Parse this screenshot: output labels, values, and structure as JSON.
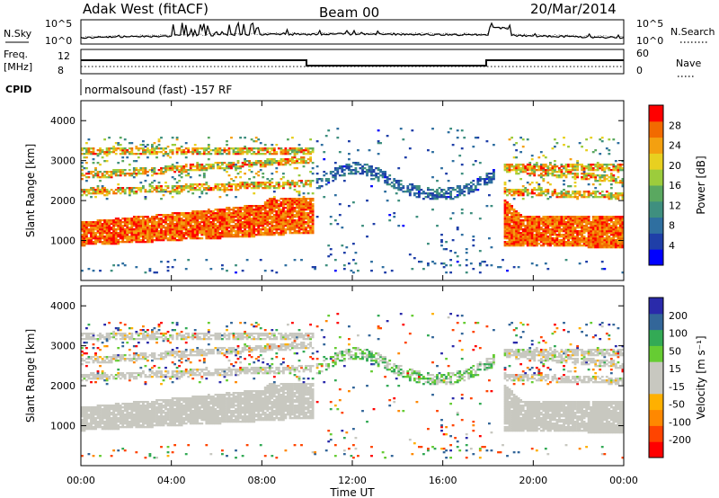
{
  "header": {
    "title": "Adak West (fitACF)",
    "beam": "Beam 00",
    "date": "20/Mar/2014"
  },
  "params": {
    "nsky_label": "N.Sky",
    "nsearch_label": "N.Search",
    "noise_ticks_left": [
      "10^5",
      "10^0"
    ],
    "noise_ticks_right": [
      "10^5",
      "10^0"
    ],
    "freq_label_1": "Freq.",
    "freq_label_2": "[MHz]",
    "freq_ticks": [
      "12",
      "8"
    ],
    "nave_label": "Nave",
    "nave_ticks": [
      "60",
      "0"
    ],
    "cpid_label": "CPID",
    "cpid_text": "normalsound (fast) -157 RF"
  },
  "colors": {
    "power": [
      "#0000ff",
      "#1f3fa8",
      "#2f6fa0",
      "#3f8f7f",
      "#5aa860",
      "#9ccc3c",
      "#e8d020",
      "#f4a010",
      "#f26a00",
      "#ff0000"
    ],
    "velocity": [
      "#ff0000",
      "#ff4400",
      "#ff8800",
      "#ffb000",
      "#c8c8c0",
      "#c8c8c0",
      "#66cc33",
      "#33aa55",
      "#336699",
      "#2a2aaa"
    ],
    "ground_scatter": "#c8c8c0"
  },
  "chart_data": [
    {
      "type": "heatmap",
      "ylabel": "Slant Range [km]",
      "yticks": [
        "1000",
        "2000",
        "3000",
        "4000"
      ],
      "ylim": [
        0,
        4500
      ],
      "colorbar_label": "Power [dB]",
      "colorbar_ticks": [
        "4",
        "8",
        "12",
        "16",
        "20",
        "24",
        "28"
      ],
      "colorbar_range": [
        0,
        33
      ]
    },
    {
      "type": "heatmap",
      "ylabel": "Slant Range [km]",
      "yticks": [
        "1000",
        "2000",
        "3000",
        "4000"
      ],
      "ylim": [
        0,
        4500
      ],
      "colorbar_label": "Velocity [m s⁻¹]",
      "colorbar_ticks": [
        "-200",
        "-100",
        "-50",
        "-15",
        "15",
        "50",
        "100",
        "200"
      ],
      "colorbar_range": [
        -250,
        250
      ]
    }
  ],
  "xaxis": {
    "ticks": [
      "00:00",
      "04:00",
      "08:00",
      "12:00",
      "16:00",
      "20:00",
      "00:00"
    ],
    "label": "Time UT",
    "xlim_hours": [
      0,
      24
    ]
  }
}
